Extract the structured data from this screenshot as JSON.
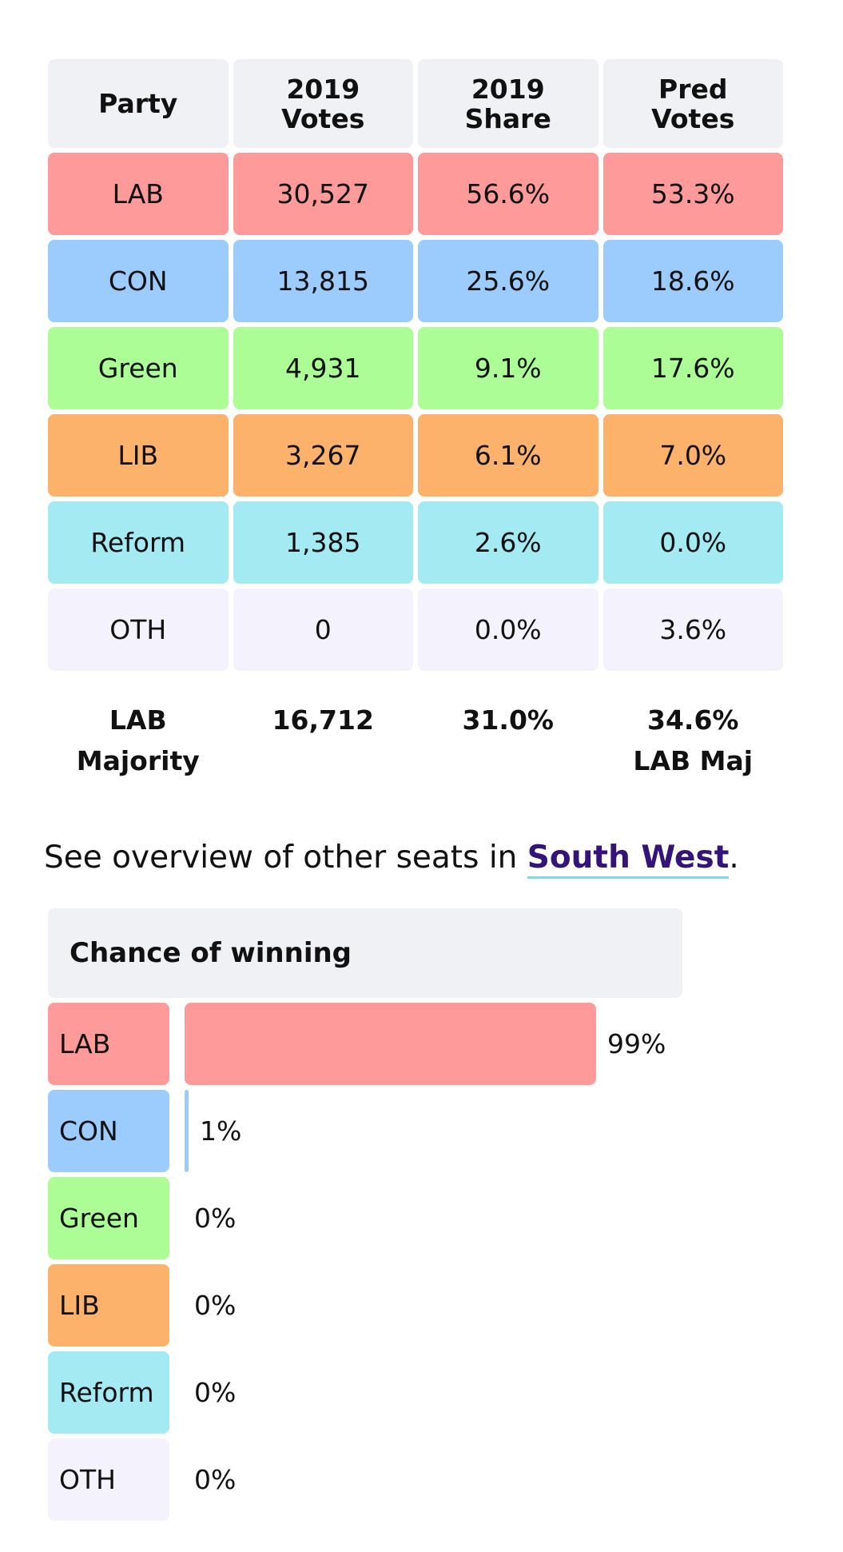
{
  "colors": {
    "LAB": "#fe9a9a",
    "CON": "#9ccbfd",
    "Green": "#acfd95",
    "LIB": "#fdb26b",
    "Reform": "#a3eaf2",
    "OTH": "#f4f2fd",
    "header": "#f0f1f4",
    "link": "#35147a"
  },
  "table": {
    "headers": [
      [
        "Party"
      ],
      [
        "2019",
        "Votes"
      ],
      [
        "2019",
        "Share"
      ],
      [
        "Pred",
        "Votes"
      ]
    ],
    "rows": [
      {
        "party": "LAB",
        "votes": "30,527",
        "share": "56.6%",
        "pred": "53.3%"
      },
      {
        "party": "CON",
        "votes": "13,815",
        "share": "25.6%",
        "pred": "18.6%"
      },
      {
        "party": "Green",
        "votes": "4,931",
        "share": "9.1%",
        "pred": "17.6%"
      },
      {
        "party": "LIB",
        "votes": "3,267",
        "share": "6.1%",
        "pred": "7.0%"
      },
      {
        "party": "Reform",
        "votes": "1,385",
        "share": "2.6%",
        "pred": "0.0%"
      },
      {
        "party": "OTH",
        "votes": "0",
        "share": "0.0%",
        "pred": "3.6%"
      }
    ],
    "footer": {
      "label": [
        "LAB",
        "Majority"
      ],
      "votes": "16,712",
      "share": "31.0%",
      "pred": [
        "34.6%",
        "LAB Maj"
      ]
    }
  },
  "overview": {
    "prefix": "See overview of other seats in ",
    "link": "South West",
    "suffix": "."
  },
  "chance": {
    "title": "Chance of winning",
    "rows": [
      {
        "party": "LAB",
        "percent": 99,
        "label": "99%"
      },
      {
        "party": "CON",
        "percent": 1,
        "label": "1%"
      },
      {
        "party": "Green",
        "percent": 0,
        "label": "0%"
      },
      {
        "party": "LIB",
        "percent": 0,
        "label": "0%"
      },
      {
        "party": "Reform",
        "percent": 0,
        "label": "0%"
      },
      {
        "party": "OTH",
        "percent": 0,
        "label": "0%"
      }
    ]
  }
}
